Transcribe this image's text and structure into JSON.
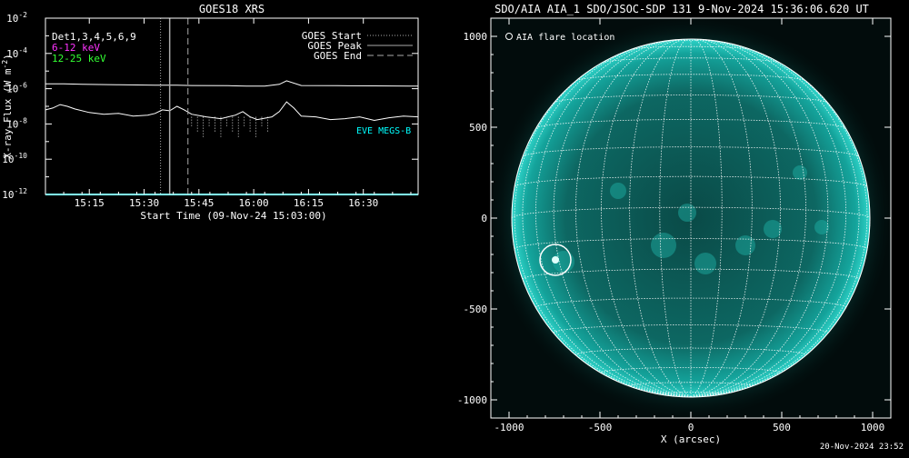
{
  "chart_data": [
    {
      "type": "line",
      "title": "GOES18 XRS",
      "xlabel": "Start Time (09-Nov-24 15:03:00)",
      "ylabel": "X-ray Flux (W m",
      "ylabel_superscript": "-2",
      "ylabel_close": ")",
      "x_start": "15:03",
      "x_end": "16:45",
      "x_ticks": [
        {
          "label": "15:15",
          "minute": 15
        },
        {
          "label": "15:30",
          "minute": 30
        },
        {
          "label": "15:45",
          "minute": 45
        },
        {
          "label": "16:00",
          "minute": 60
        },
        {
          "label": "16:15",
          "minute": 75
        },
        {
          "label": "16:30",
          "minute": 90
        }
      ],
      "ylog": true,
      "ylim_exp": [
        -12,
        -2
      ],
      "y_ticks": [
        {
          "base": "10",
          "exp": "-2",
          "value_exp": -2
        },
        {
          "base": "10",
          "exp": "-4",
          "value_exp": -4
        },
        {
          "base": "10",
          "exp": "-6",
          "value_exp": -6
        },
        {
          "base": "10",
          "exp": "-8",
          "value_exp": -8
        },
        {
          "base": "10",
          "exp": "-10",
          "value_exp": -10
        },
        {
          "base": "10",
          "exp": "-12",
          "value_exp": -12
        }
      ],
      "legend_left": [
        {
          "text": "Det1,3,4,5,6,9",
          "color": "#ffffff"
        },
        {
          "text": "6-12 keV",
          "color": "#ff33ff"
        },
        {
          "text": "12-25 keV",
          "color": "#33ff33"
        }
      ],
      "legend_right": [
        {
          "text": "GOES Start",
          "style": "dotted"
        },
        {
          "text": "GOES Peak",
          "style": "solid"
        },
        {
          "text": "GOES End",
          "style": "dashed"
        }
      ],
      "overlay_label": "EVE MEGS-B",
      "overlay_color": "#00ffff",
      "markers": {
        "start_min": 31.5,
        "peak_min": 34.0,
        "end_min": 39.0
      },
      "series": [
        {
          "color": "#ffffff",
          "x": [
            0,
            5,
            10,
            20,
            30,
            36,
            40,
            50,
            55,
            60,
            64,
            66,
            70,
            80,
            90,
            100,
            102
          ],
          "y_exp": [
            -5.72,
            -5.72,
            -5.75,
            -5.78,
            -5.8,
            -5.8,
            -5.82,
            -5.83,
            -5.85,
            -5.85,
            -5.75,
            -5.55,
            -5.82,
            -5.83,
            -5.84,
            -5.85,
            -5.85
          ]
        },
        {
          "color": "#ffffff",
          "x": [
            0,
            2,
            4,
            6,
            8,
            12,
            16,
            20,
            24,
            28,
            30,
            32,
            34,
            36,
            38,
            40,
            44,
            48,
            52,
            54,
            56,
            58,
            62,
            64,
            66,
            68,
            70,
            74,
            78,
            82,
            86,
            90,
            94,
            98,
            102
          ],
          "y_exp": [
            -7.2,
            -7.1,
            -6.9,
            -7.0,
            -7.15,
            -7.35,
            -7.45,
            -7.4,
            -7.55,
            -7.5,
            -7.4,
            -7.2,
            -7.25,
            -7.0,
            -7.2,
            -7.45,
            -7.6,
            -7.7,
            -7.5,
            -7.3,
            -7.6,
            -7.75,
            -7.6,
            -7.3,
            -6.75,
            -7.1,
            -7.55,
            -7.6,
            -7.75,
            -7.7,
            -7.6,
            -7.8,
            -7.65,
            -7.55,
            -7.6
          ]
        },
        {
          "color": "#00ffff",
          "x": [
            0,
            102
          ],
          "y_exp": [
            -12,
            -12
          ]
        }
      ]
    },
    {
      "type": "image",
      "title": "SDO/AIA AIA_1 SDO/JSOC-SDP 131  9-Nov-2024 15:36:06.620 UT",
      "xlabel": "X (arcsec)",
      "ylabel": "",
      "xlim": [
        -1100,
        1100
      ],
      "ylim": [
        -1100,
        1100
      ],
      "solar_radius": 985,
      "x_ticks": [
        -1000,
        -500,
        0,
        500,
        1000
      ],
      "y_ticks": [
        -1000,
        -500,
        0,
        500,
        1000
      ],
      "legend": "AIA flare location",
      "flare": {
        "x": -745,
        "y": -230,
        "radius": 85
      },
      "disk_color": "#0f9a94"
    }
  ],
  "footer": "20-Nov-2024 23:52"
}
